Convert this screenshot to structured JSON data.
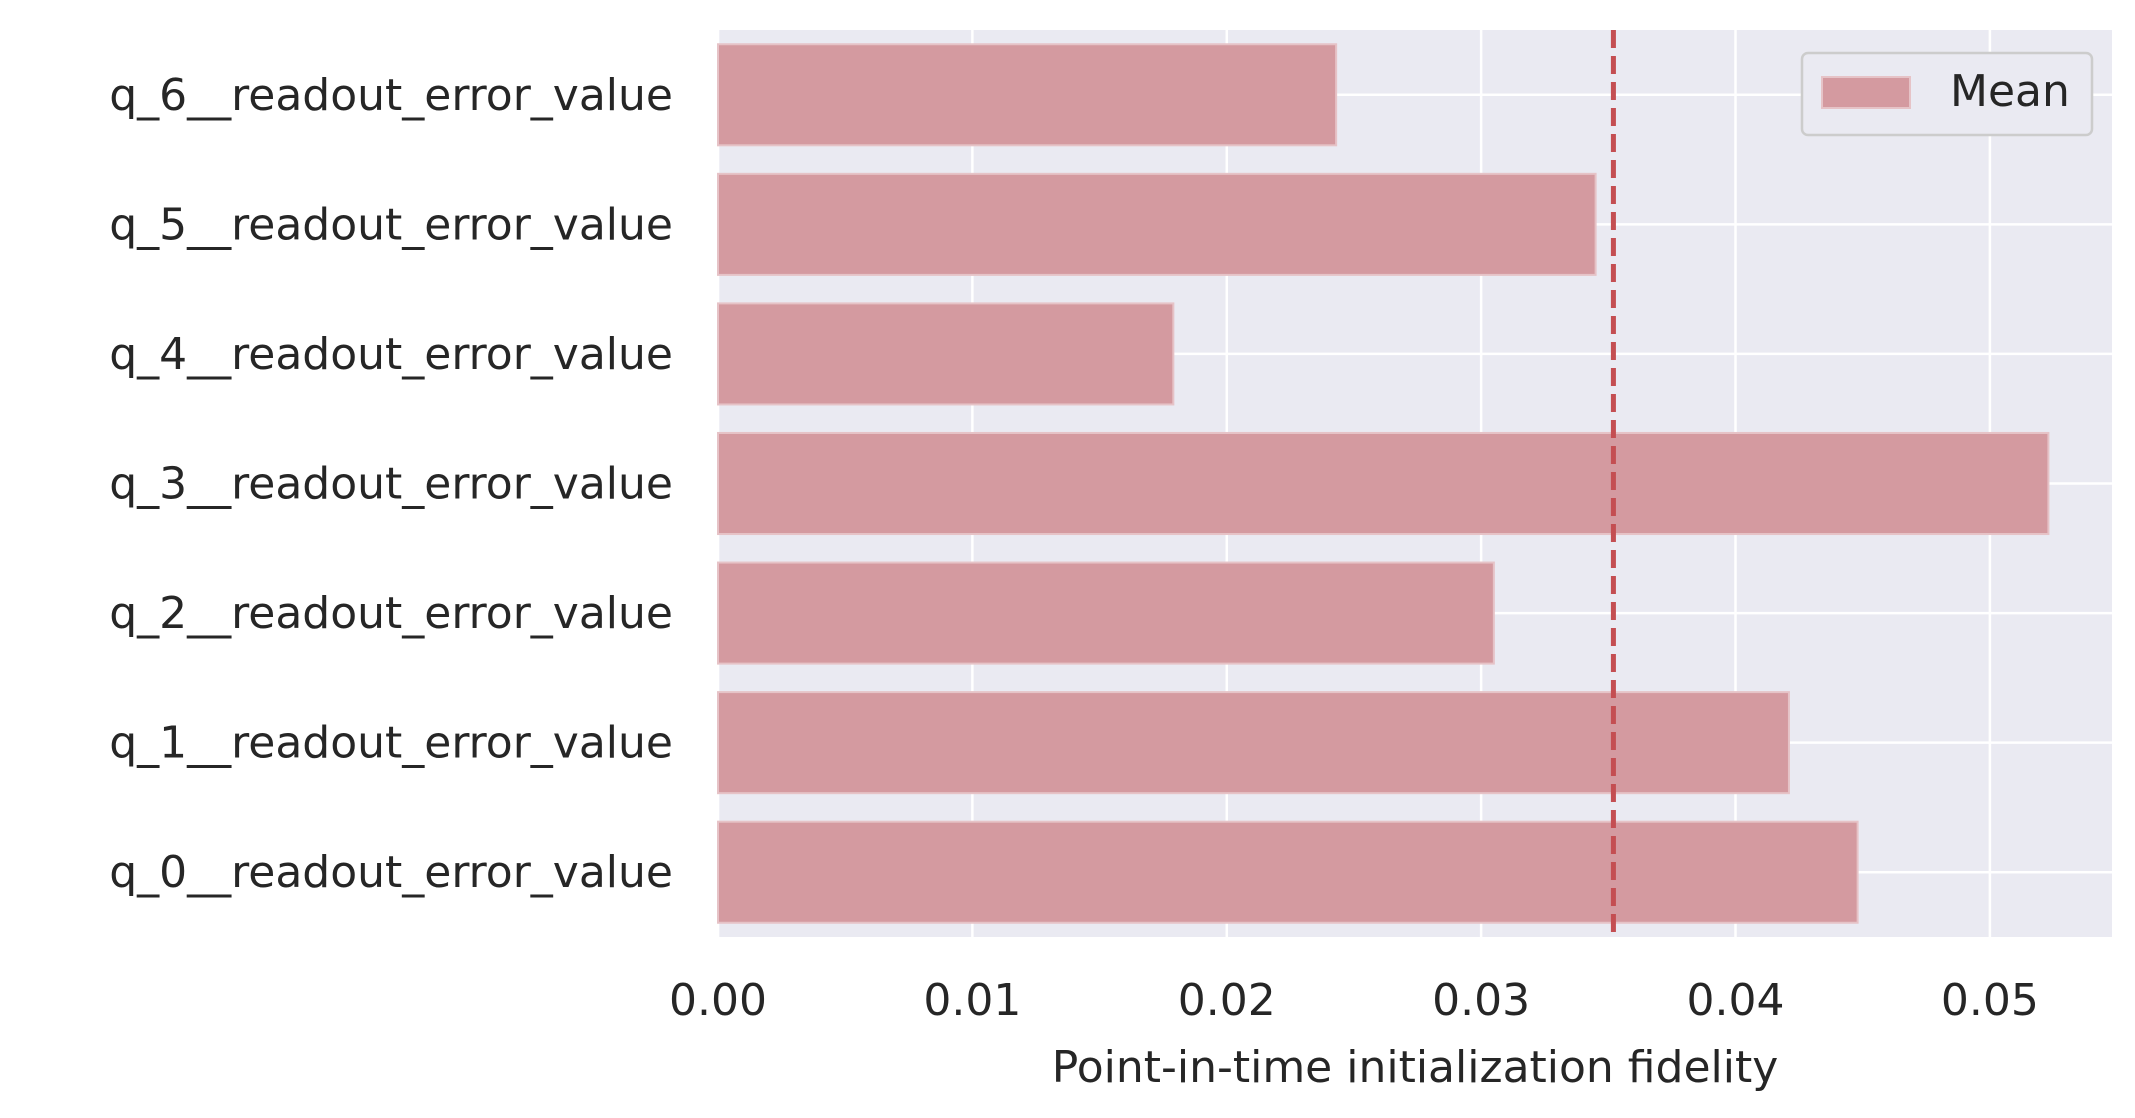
{
  "chart_data": {
    "type": "bar",
    "orientation": "horizontal",
    "categories": [
      "q_0__readout_error_value",
      "q_1__readout_error_value",
      "q_2__readout_error_value",
      "q_3__readout_error_value",
      "q_4__readout_error_value",
      "q_5__readout_error_value",
      "q_6__readout_error_value"
    ],
    "values": [
      0.0448,
      0.0421,
      0.0305,
      0.0523,
      0.0179,
      0.0345,
      0.0243
    ],
    "mean_line": 0.0352,
    "xlabel": "Point-in-time initialization fidelity",
    "ylabel": "",
    "xlim": [
      0,
      0.0548
    ],
    "xticks": [
      "0.00",
      "0.01",
      "0.02",
      "0.03",
      "0.04",
      "0.05"
    ],
    "legend": {
      "label": "Mean",
      "placement": "top-right"
    },
    "grid": true,
    "colors": {
      "bar": "#d49aa0",
      "bar_edge": "#e6c3c7",
      "mean_line": "#c44e52",
      "plot_background": "#eaeaf2",
      "grid": "#ffffff",
      "text": "#262626"
    }
  }
}
